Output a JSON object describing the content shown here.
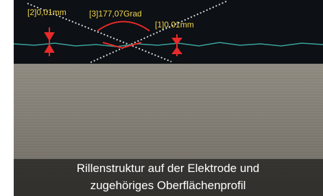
{
  "measurements": [
    {
      "label": "[2]0,01mm"
    },
    {
      "label": "[3]177,07Grad"
    },
    {
      "label": "[1]0,01mm"
    }
  ],
  "caption": {
    "lines": [
      "Rillenstruktur auf der Elektrode und",
      "zugehöriges Oberflächenprofil"
    ]
  }
}
